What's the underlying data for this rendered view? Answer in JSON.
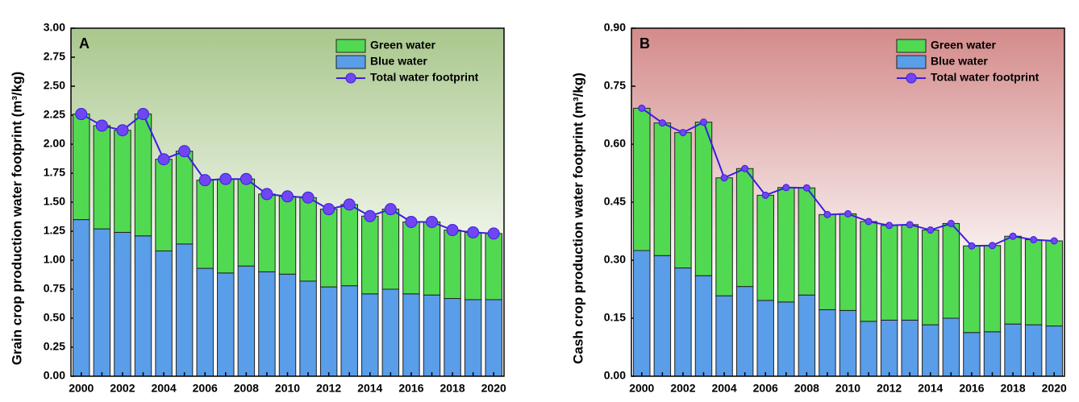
{
  "chart_data": [
    {
      "type": "stacked_bar_line",
      "panel": "A",
      "ylabel": "Grain crop production water footprint (m³/kg)",
      "categories": [
        2000,
        null,
        2002,
        null,
        2004,
        null,
        2006,
        null,
        2008,
        null,
        2010,
        null,
        2012,
        null,
        2014,
        null,
        2016,
        null,
        2018,
        null,
        2020
      ],
      "series": [
        {
          "name": "Blue water",
          "type": "bar",
          "color": "#5a9de8",
          "values": [
            1.35,
            1.27,
            1.24,
            1.21,
            1.08,
            1.14,
            0.93,
            0.89,
            0.95,
            0.9,
            0.88,
            0.82,
            0.77,
            0.78,
            0.71,
            0.75,
            0.71,
            0.7,
            0.67,
            0.66,
            0.66
          ]
        },
        {
          "name": "Green water",
          "type": "bar",
          "color": "#52d952",
          "values": [
            0.91,
            0.89,
            0.88,
            1.05,
            0.79,
            0.8,
            0.76,
            0.81,
            0.75,
            0.67,
            0.67,
            0.72,
            0.67,
            0.7,
            0.67,
            0.69,
            0.62,
            0.63,
            0.59,
            0.58,
            0.57
          ]
        },
        {
          "name": "Total water footprint",
          "type": "line",
          "color": "#3b1ee0",
          "values": [
            2.26,
            2.16,
            2.12,
            2.26,
            1.87,
            1.94,
            1.69,
            1.7,
            1.7,
            1.57,
            1.55,
            1.54,
            1.44,
            1.48,
            1.38,
            1.44,
            1.33,
            1.33,
            1.26,
            1.24,
            1.23
          ]
        }
      ],
      "ylim": [
        0,
        3
      ],
      "yticks": [
        {
          "value": 0,
          "label": "0.00"
        },
        {
          "value": 0.25,
          "label": "0.25"
        },
        {
          "value": 0.5,
          "label": "0.50"
        },
        {
          "value": 0.75,
          "label": "0.75"
        },
        {
          "value": 1,
          "label": "1.00"
        },
        {
          "value": 1.25,
          "label": "1.25"
        },
        {
          "value": 1.5,
          "label": "1.50"
        },
        {
          "value": 1.75,
          "label": "1.75"
        },
        {
          "value": 2,
          "label": "2.00"
        },
        {
          "value": 2.25,
          "label": "2.25"
        },
        {
          "value": 2.5,
          "label": "2.50"
        },
        {
          "value": 2.75,
          "label": "2.75"
        },
        {
          "value": 3,
          "label": "3.00"
        }
      ],
      "background": [
        "#a9c78c",
        "#ffffff"
      ],
      "legend": "upper right"
    },
    {
      "type": "stacked_bar_line",
      "panel": "B",
      "ylabel": "Cash crop production water footprint (m³/kg)",
      "categories": [
        2000,
        null,
        2002,
        null,
        2004,
        null,
        2006,
        null,
        2008,
        null,
        2010,
        null,
        2012,
        null,
        2014,
        null,
        2016,
        null,
        2018,
        null,
        2020
      ],
      "series": [
        {
          "name": "Blue water",
          "type": "bar",
          "color": "#5a9de8",
          "values": [
            0.325,
            0.312,
            0.28,
            0.26,
            0.208,
            0.232,
            0.196,
            0.192,
            0.21,
            0.172,
            0.17,
            0.142,
            0.145,
            0.145,
            0.133,
            0.15,
            0.113,
            0.115,
            0.135,
            0.133,
            0.13
          ]
        },
        {
          "name": "Green water",
          "type": "bar",
          "color": "#52d952",
          "values": [
            0.368,
            0.343,
            0.35,
            0.397,
            0.305,
            0.305,
            0.272,
            0.296,
            0.277,
            0.246,
            0.25,
            0.258,
            0.245,
            0.247,
            0.245,
            0.245,
            0.224,
            0.223,
            0.227,
            0.22,
            0.22
          ]
        },
        {
          "name": "Total water footprint",
          "type": "line",
          "color": "#3b1ee0",
          "values": [
            0.693,
            0.655,
            0.63,
            0.657,
            0.513,
            0.537,
            0.468,
            0.488,
            0.487,
            0.418,
            0.42,
            0.4,
            0.39,
            0.392,
            0.378,
            0.395,
            0.337,
            0.338,
            0.362,
            0.353,
            0.35
          ]
        }
      ],
      "ylim": [
        0,
        0.9
      ],
      "yticks": [
        {
          "value": 0,
          "label": "0.00"
        },
        {
          "value": 0.15,
          "label": "0.15"
        },
        {
          "value": 0.3,
          "label": "0.30"
        },
        {
          "value": 0.45,
          "label": "0.45"
        },
        {
          "value": 0.6,
          "label": "0.60"
        },
        {
          "value": 0.75,
          "label": "0.75"
        },
        {
          "value": 0.9,
          "label": "0.90"
        }
      ],
      "background": [
        "#d48a8a",
        "#ffffff"
      ],
      "legend": "upper right"
    }
  ]
}
